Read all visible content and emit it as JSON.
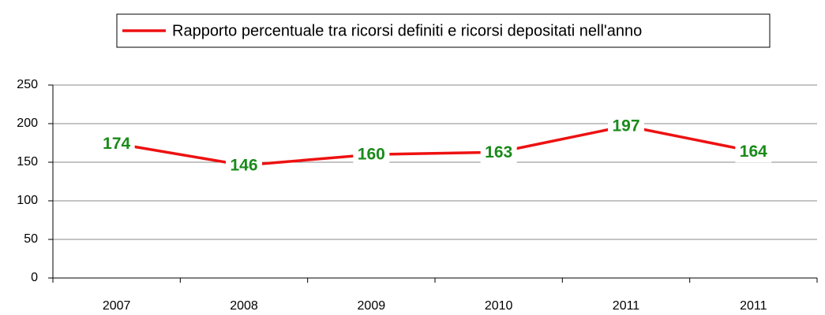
{
  "chart_data": {
    "type": "line",
    "legend_label": "Rapporto percentuale tra ricorsi definiti e ricorsi depositati nell'anno",
    "categories": [
      "2007",
      "2008",
      "2009",
      "2010",
      "2011",
      "2011"
    ],
    "series": [
      {
        "name": "Rapporto percentuale tra ricorsi definiti e ricorsi depositati nell'anno",
        "color": "#ee1111",
        "values": [
          174,
          146,
          160,
          163,
          197,
          164
        ]
      }
    ],
    "label_color": "#1a8a1a",
    "ylim": [
      0,
      250
    ],
    "yticks": [
      0,
      50,
      100,
      150,
      200,
      250
    ],
    "grid": true,
    "legend": "top"
  }
}
